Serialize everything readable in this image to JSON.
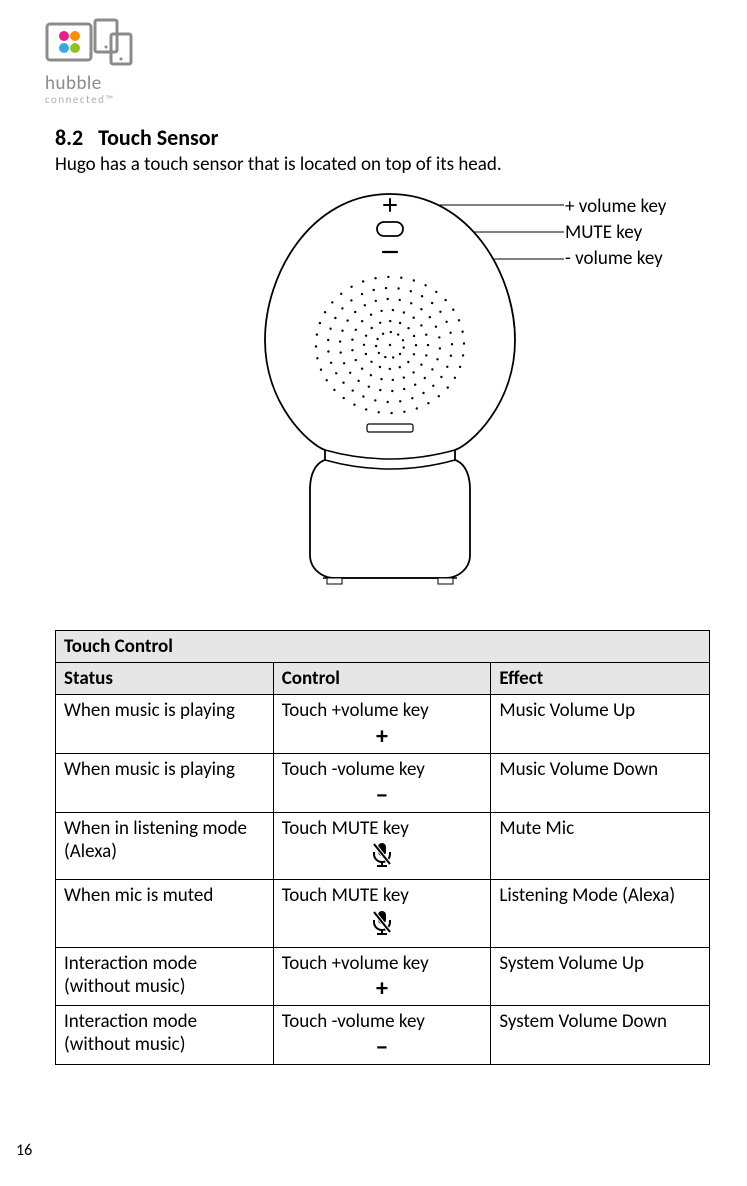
{
  "brand": {
    "name": "hubble",
    "tagline": "connected™"
  },
  "section": {
    "number": "8.2",
    "title": "Touch Sensor"
  },
  "intro": "Hugo has a touch sensor that is located on top of its head.",
  "callouts": {
    "plus": "+ volume key",
    "mute": "MUTE key",
    "minus": "- volume key"
  },
  "table": {
    "title": "Touch Control",
    "columns": [
      "Status",
      "Control",
      "Effect"
    ],
    "rows": [
      {
        "status": "When music is playing",
        "control_text": "Touch +volume key",
        "control_icon": "plus",
        "effect": "Music Volume Up"
      },
      {
        "status": "When music is playing",
        "control_text": "Touch -volume key",
        "control_icon": "minus",
        "effect": "Music Volume Down"
      },
      {
        "status": "When in listening mode (Alexa)",
        "control_text": "Touch MUTE key",
        "control_icon": "mic-mute",
        "effect": "Mute Mic"
      },
      {
        "status": "When mic is muted",
        "control_text": "Touch MUTE key",
        "control_icon": "mic-mute",
        "effect": "Listening Mode (Alexa)"
      },
      {
        "status": "Interaction mode (without music)",
        "control_text": "Touch +volume key",
        "control_icon": "plus",
        "effect": "System Volume Up"
      },
      {
        "status": "Interaction mode (without music)",
        "control_text": "Touch -volume key",
        "control_icon": "minus",
        "effect": "System Volume Down"
      }
    ]
  },
  "page_number": "16",
  "colors": {
    "logo_pink": "#e91e8c",
    "logo_orange": "#f39200",
    "logo_green": "#95c11f",
    "logo_blue": "#36a9e1",
    "brand_gray": "#8b8b8b",
    "tag_gray": "#b0b0b0",
    "table_header_bg": "#e6e6e6",
    "border": "#000000",
    "text": "#000000"
  },
  "diagram": {
    "callout_line_y": {
      "plus": 15,
      "mute": 42,
      "minus": 69
    },
    "callout_line_x_start": {
      "plus": 342,
      "mute": 370,
      "minus": 355
    },
    "callout_line_x_end": 519
  }
}
